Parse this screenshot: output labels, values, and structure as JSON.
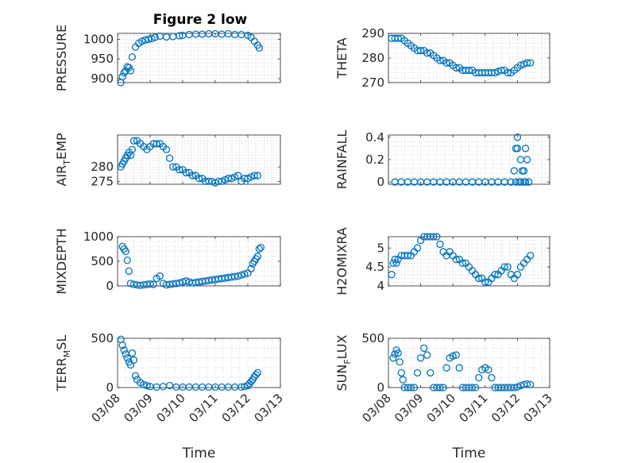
{
  "figure_title": "Figure 2 low",
  "marker_color": "#0072BD",
  "chart_data": [
    {
      "type": "scatter",
      "title": "Figure 2 low",
      "ylabel": "PRESSURE",
      "xlabel": "",
      "ylim": [
        890,
        1015
      ],
      "yticks": [
        900,
        950,
        1000
      ],
      "xlim": [
        0,
        5
      ],
      "xticks": [
        0,
        1,
        2,
        3,
        4,
        5
      ],
      "xticklabels": [
        "",
        "",
        "",
        "",
        "",
        ""
      ],
      "x": [
        0.1,
        0.15,
        0.2,
        0.25,
        0.3,
        0.35,
        0.4,
        0.45,
        0.55,
        0.65,
        0.75,
        0.85,
        0.95,
        1.05,
        1.15,
        1.3,
        1.5,
        1.7,
        1.9,
        2.0,
        2.2,
        2.4,
        2.6,
        2.8,
        3.0,
        3.2,
        3.4,
        3.6,
        3.8,
        4.0,
        4.1,
        4.2,
        4.3,
        4.35
      ],
      "y": [
        890,
        905,
        915,
        920,
        930,
        928,
        920,
        955,
        980,
        990,
        995,
        998,
        1000,
        1002,
        1005,
        1008,
        1006,
        1007,
        1009,
        1010,
        1012,
        1013,
        1013,
        1014,
        1014,
        1013,
        1014,
        1012,
        1012,
        1010,
        1005,
        995,
        985,
        978
      ]
    },
    {
      "type": "scatter",
      "ylabel": "THETA",
      "xlabel": "",
      "ylim": [
        270,
        290
      ],
      "yticks": [
        270,
        280,
        290
      ],
      "xlim": [
        0,
        5
      ],
      "xticks": [
        0,
        1,
        2,
        3,
        4,
        5
      ],
      "xticklabels": [
        "",
        "",
        "",
        "",
        "",
        ""
      ],
      "x": [
        0.1,
        0.2,
        0.3,
        0.4,
        0.5,
        0.6,
        0.7,
        0.8,
        0.9,
        1.0,
        1.1,
        1.2,
        1.3,
        1.4,
        1.5,
        1.6,
        1.7,
        1.8,
        1.9,
        2.0,
        2.1,
        2.2,
        2.3,
        2.4,
        2.5,
        2.6,
        2.7,
        2.8,
        2.9,
        3.0,
        3.1,
        3.2,
        3.3,
        3.4,
        3.5,
        3.6,
        3.7,
        3.8,
        3.9,
        4.0,
        4.1,
        4.2,
        4.3,
        4.4
      ],
      "y": [
        288,
        288,
        288,
        288,
        287,
        286,
        285,
        284,
        283,
        283,
        283,
        282,
        282,
        281,
        280,
        279,
        279,
        278,
        278,
        277,
        276,
        276,
        275,
        275,
        275,
        275,
        274,
        274,
        274,
        274,
        274,
        274,
        274,
        274.5,
        275,
        275,
        274,
        274,
        275,
        276,
        277,
        277.5,
        278,
        278
      ]
    },
    {
      "type": "scatter",
      "ylabel": "AIR_TEMP",
      "xlabel": "",
      "ylim": [
        274,
        291
      ],
      "yticks": [
        275,
        280
      ],
      "xlim": [
        0,
        5
      ],
      "xticks": [
        0,
        1,
        2,
        3,
        4,
        5
      ],
      "xticklabels": [
        "",
        "",
        "",
        "",
        "",
        ""
      ],
      "x": [
        0.1,
        0.15,
        0.2,
        0.25,
        0.3,
        0.35,
        0.4,
        0.45,
        0.5,
        0.6,
        0.7,
        0.8,
        0.9,
        1.0,
        1.1,
        1.2,
        1.3,
        1.4,
        1.5,
        1.6,
        1.7,
        1.8,
        1.9,
        2.0,
        2.1,
        2.2,
        2.3,
        2.4,
        2.5,
        2.6,
        2.7,
        2.8,
        2.9,
        3.0,
        3.1,
        3.2,
        3.3,
        3.4,
        3.5,
        3.6,
        3.7,
        3.8,
        3.9,
        4.0,
        4.1,
        4.2,
        4.3
      ],
      "y": [
        280,
        281,
        282,
        283,
        284,
        285,
        284,
        286,
        289,
        289,
        288,
        287,
        286,
        287,
        288,
        288,
        288,
        287,
        286,
        283,
        280,
        280,
        279,
        279,
        278,
        278,
        277,
        277,
        276,
        276,
        275,
        275,
        275,
        274.5,
        275,
        275,
        275.5,
        276,
        276,
        276.5,
        277,
        275,
        276,
        276,
        276.5,
        277,
        277
      ]
    },
    {
      "type": "scatter",
      "ylabel": "RAINFALL",
      "xlabel": "",
      "ylim": [
        -0.02,
        0.42
      ],
      "yticks": [
        0,
        0.2,
        0.4
      ],
      "xlim": [
        0,
        5
      ],
      "xticks": [
        0,
        1,
        2,
        3,
        4,
        5
      ],
      "xticklabels": [
        "",
        "",
        "",
        "",
        "",
        ""
      ],
      "x": [
        0.2,
        0.4,
        0.6,
        0.8,
        1.0,
        1.2,
        1.4,
        1.6,
        1.8,
        2.0,
        2.2,
        2.4,
        2.6,
        2.8,
        3.0,
        3.2,
        3.4,
        3.6,
        3.8,
        3.95,
        3.9,
        3.95,
        4.0,
        4.0,
        4.05,
        4.1,
        4.1,
        4.15,
        4.2,
        4.2,
        4.25,
        4.25,
        4.3,
        4.35
      ],
      "y": [
        0,
        0,
        0,
        0,
        0,
        0,
        0,
        0,
        0,
        0,
        0,
        0,
        0,
        0,
        0,
        0,
        0,
        0,
        0,
        0,
        0.1,
        0.3,
        0.4,
        0.3,
        0,
        0.2,
        0,
        0.1,
        0.1,
        0,
        0.3,
        0,
        0.2,
        0
      ]
    },
    {
      "type": "scatter",
      "ylabel": "MIXDEPTH",
      "xlabel": "",
      "ylim": [
        0,
        1000
      ],
      "yticks": [
        0,
        500,
        1000
      ],
      "xlim": [
        0,
        5
      ],
      "xticks": [
        0,
        1,
        2,
        3,
        4,
        5
      ],
      "xticklabels": [
        "",
        "",
        "",
        "",
        "",
        ""
      ],
      "x": [
        0.15,
        0.2,
        0.25,
        0.3,
        0.35,
        0.4,
        0.5,
        0.6,
        0.7,
        0.8,
        0.9,
        1.0,
        1.1,
        1.2,
        1.3,
        1.4,
        1.5,
        1.6,
        1.7,
        1.8,
        1.9,
        2.0,
        2.1,
        2.2,
        2.3,
        2.4,
        2.5,
        2.6,
        2.7,
        2.8,
        2.9,
        3.0,
        3.1,
        3.2,
        3.3,
        3.4,
        3.5,
        3.6,
        3.7,
        3.8,
        3.9,
        4.0,
        4.1,
        4.15,
        4.2,
        4.25,
        4.3,
        4.35,
        4.4
      ],
      "y": [
        800,
        750,
        700,
        520,
        300,
        50,
        30,
        20,
        10,
        20,
        30,
        40,
        30,
        150,
        200,
        50,
        20,
        30,
        40,
        50,
        60,
        80,
        100,
        80,
        60,
        70,
        80,
        90,
        100,
        110,
        120,
        130,
        140,
        150,
        160,
        170,
        180,
        190,
        200,
        220,
        240,
        260,
        350,
        450,
        500,
        550,
        600,
        750,
        780
      ]
    },
    {
      "type": "scatter",
      "ylabel": "H2OMIXRA",
      "xlabel": "",
      "ylim": [
        4,
        5.3
      ],
      "yticks": [
        4,
        4.5,
        5
      ],
      "xlim": [
        0,
        5
      ],
      "xticks": [
        0,
        1,
        2,
        3,
        4,
        5
      ],
      "xticklabels": [
        "",
        "",
        "",
        "",
        "",
        ""
      ],
      "x": [
        0.1,
        0.15,
        0.2,
        0.25,
        0.3,
        0.4,
        0.5,
        0.6,
        0.7,
        0.8,
        0.9,
        1.0,
        1.1,
        1.2,
        1.3,
        1.4,
        1.5,
        1.6,
        1.7,
        1.8,
        1.9,
        2.0,
        2.1,
        2.2,
        2.3,
        2.4,
        2.5,
        2.6,
        2.7,
        2.8,
        2.9,
        3.0,
        3.1,
        3.2,
        3.3,
        3.4,
        3.5,
        3.6,
        3.7,
        3.8,
        3.9,
        4.0,
        4.1,
        4.2,
        4.3,
        4.4
      ],
      "y": [
        4.3,
        4.6,
        4.7,
        4.6,
        4.7,
        4.8,
        4.8,
        4.8,
        4.8,
        4.9,
        5.0,
        5.2,
        5.3,
        5.3,
        5.3,
        5.3,
        5.3,
        5.1,
        4.9,
        4.8,
        4.9,
        4.8,
        4.7,
        4.7,
        4.6,
        4.6,
        4.5,
        4.4,
        4.3,
        4.2,
        4.2,
        4.1,
        4.1,
        4.2,
        4.3,
        4.3,
        4.4,
        4.5,
        4.5,
        4.3,
        4.2,
        4.3,
        4.5,
        4.6,
        4.7,
        4.8
      ]
    },
    {
      "type": "scatter",
      "ylabel": "TERR_MSL",
      "xlabel": "Time",
      "ylim": [
        0,
        500
      ],
      "yticks": [
        0,
        500
      ],
      "xlim": [
        0,
        5
      ],
      "xticks": [
        0,
        1,
        2,
        3,
        4,
        5
      ],
      "xticklabels": [
        "03/08",
        "03/09",
        "03/10",
        "03/11",
        "03/12",
        "03/13"
      ],
      "x": [
        0.1,
        0.15,
        0.2,
        0.25,
        0.3,
        0.35,
        0.4,
        0.45,
        0.5,
        0.55,
        0.6,
        0.7,
        0.8,
        0.9,
        1.0,
        1.2,
        1.4,
        1.6,
        1.8,
        2.0,
        2.2,
        2.4,
        2.6,
        2.8,
        3.0,
        3.2,
        3.4,
        3.6,
        3.8,
        3.9,
        4.0,
        4.05,
        4.1,
        4.15,
        4.2,
        4.25,
        4.3
      ],
      "y": [
        490,
        430,
        380,
        340,
        300,
        260,
        230,
        350,
        280,
        120,
        80,
        50,
        30,
        20,
        10,
        5,
        10,
        20,
        5,
        5,
        5,
        5,
        5,
        5,
        5,
        5,
        5,
        5,
        5,
        10,
        20,
        40,
        60,
        80,
        110,
        130,
        150
      ]
    },
    {
      "type": "scatter",
      "ylabel": "SUN_FLUX",
      "xlabel": "Time",
      "ylim": [
        0,
        500
      ],
      "yticks": [
        0,
        500
      ],
      "xlim": [
        0,
        5
      ],
      "xticks": [
        0,
        1,
        2,
        3,
        4,
        5
      ],
      "xticklabels": [
        "03/08",
        "03/09",
        "03/10",
        "03/11",
        "03/12",
        "03/13"
      ],
      "x": [
        0.15,
        0.2,
        0.25,
        0.3,
        0.35,
        0.4,
        0.45,
        0.5,
        0.6,
        0.7,
        0.8,
        0.9,
        1.0,
        1.1,
        1.2,
        1.3,
        1.4,
        1.5,
        1.6,
        1.7,
        1.8,
        1.9,
        2.0,
        2.1,
        2.2,
        2.3,
        2.4,
        2.5,
        2.6,
        2.7,
        2.8,
        2.9,
        3.0,
        3.1,
        3.2,
        3.3,
        3.4,
        3.5,
        3.6,
        3.7,
        3.8,
        3.9,
        4.0,
        4.1,
        4.2,
        4.3,
        4.4
      ],
      "y": [
        300,
        340,
        380,
        350,
        260,
        150,
        80,
        0,
        0,
        0,
        0,
        150,
        300,
        400,
        330,
        150,
        0,
        0,
        0,
        0,
        200,
        300,
        320,
        330,
        200,
        0,
        0,
        0,
        0,
        0,
        100,
        180,
        200,
        180,
        100,
        0,
        0,
        0,
        0,
        0,
        0,
        0,
        5,
        20,
        30,
        35,
        30
      ]
    }
  ]
}
